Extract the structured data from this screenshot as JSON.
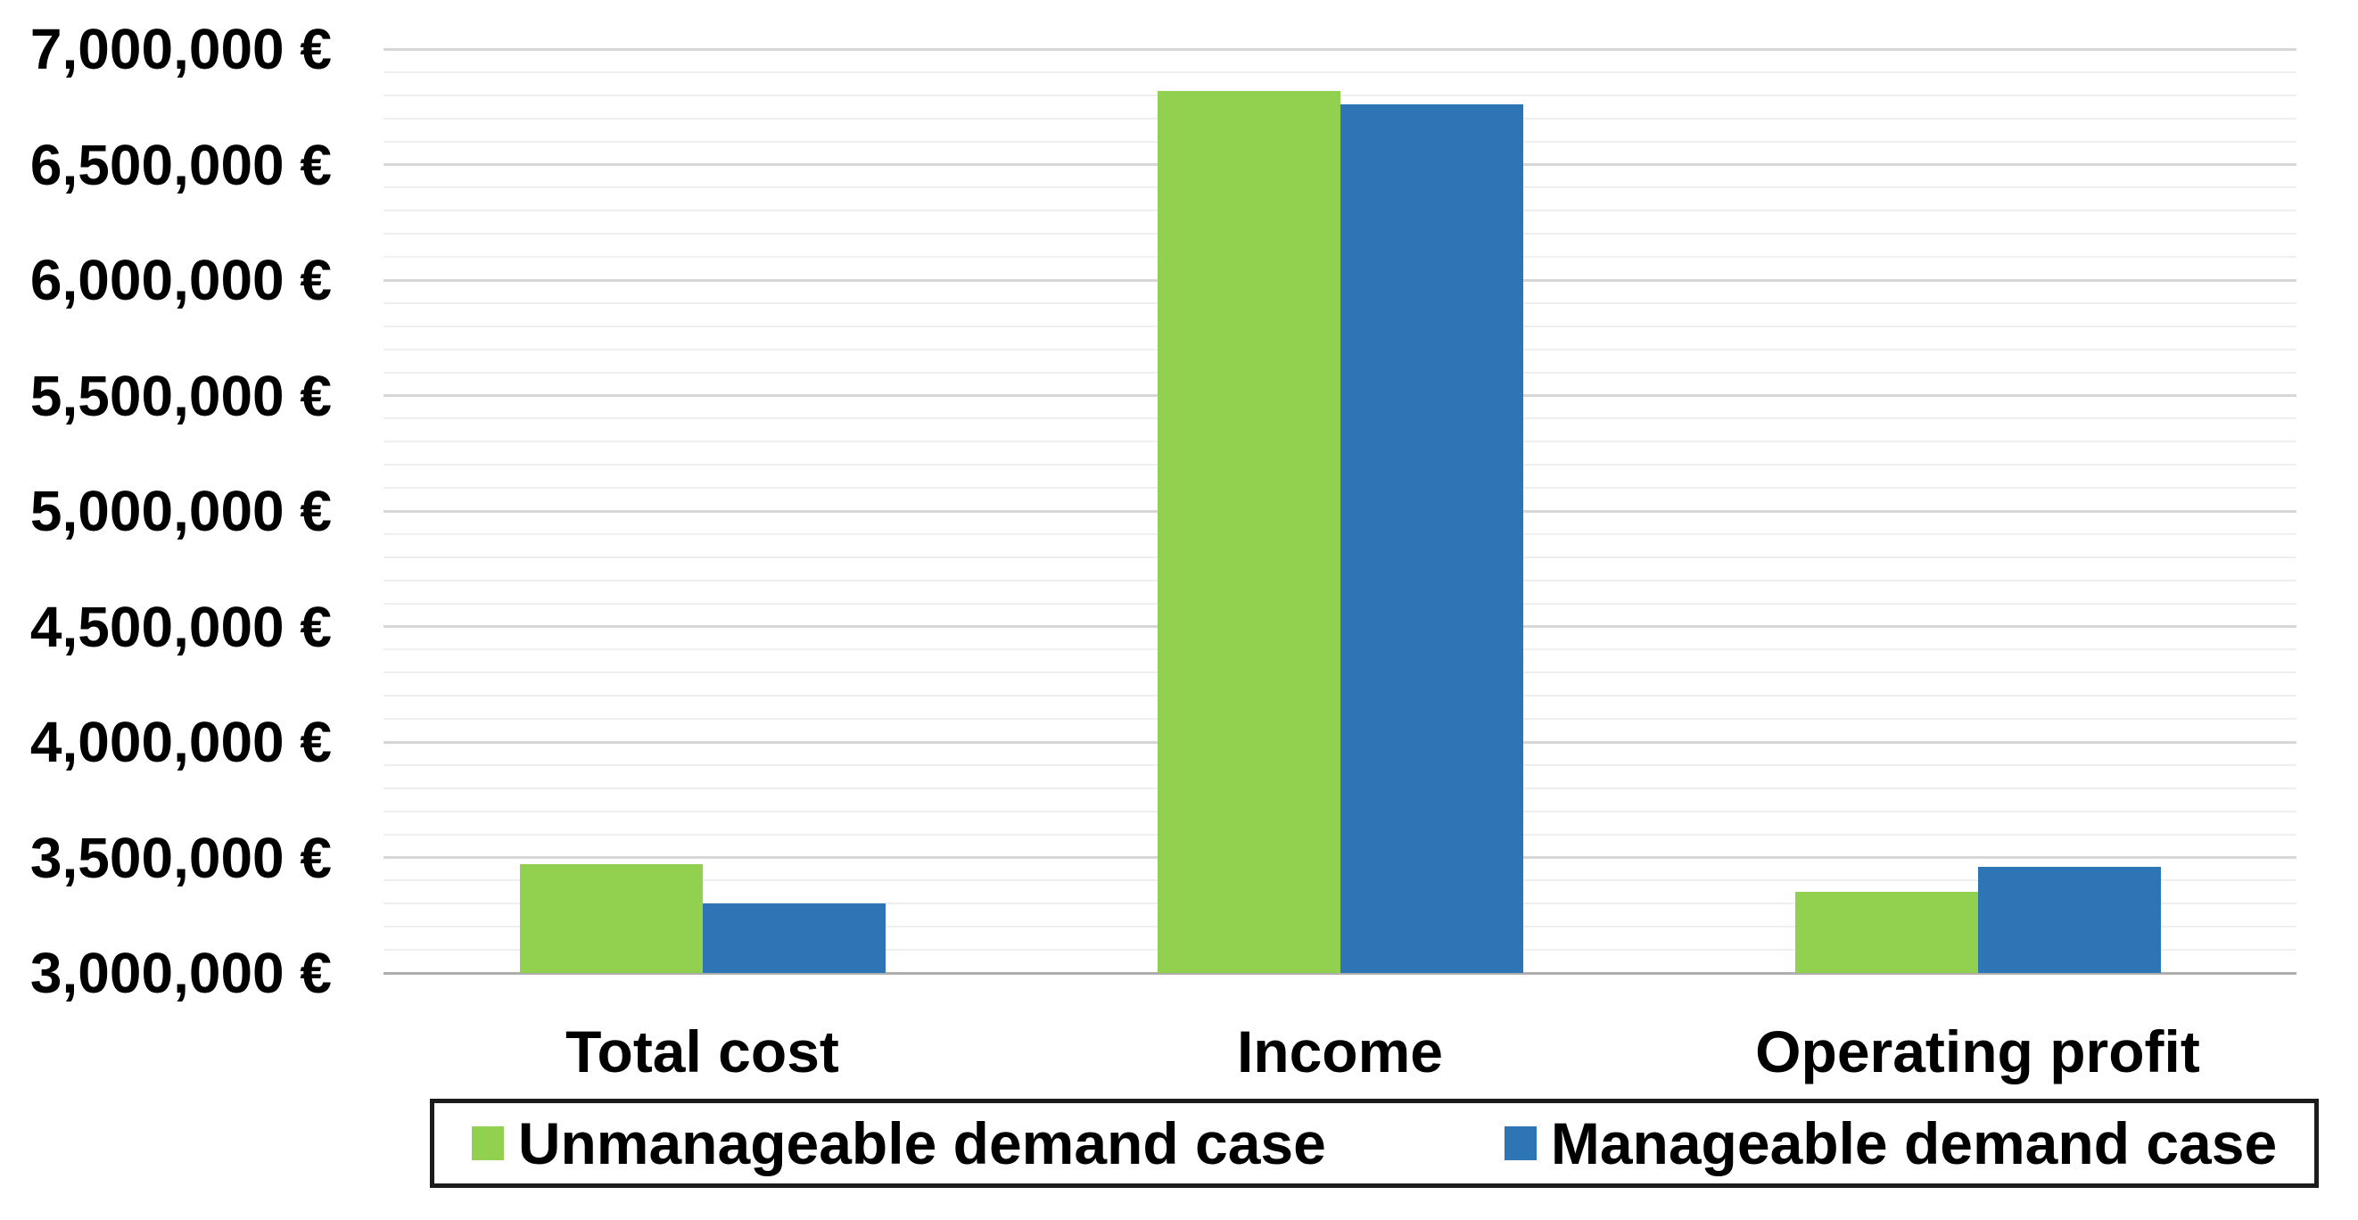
{
  "chart_data": {
    "type": "bar",
    "title": "",
    "categories": [
      "Total cost",
      "Income",
      "Operating profit"
    ],
    "series": [
      {
        "name": "Unmanageable demand case",
        "color": "#92D050",
        "values": [
          3470000,
          6820000,
          3350000
        ]
      },
      {
        "name": "Manageable demand case",
        "color": "#2E75B6",
        "values": [
          3300000,
          6760000,
          3460000
        ]
      }
    ],
    "y_axis": {
      "min": 3000000,
      "max": 7000000,
      "major_step": 500000,
      "minor_step": 100000,
      "unit": "€",
      "tick_labels": [
        "7,000,000 €",
        "6,500,000 €",
        "6,000,000 €",
        "5,500,000 €",
        "5,000,000 €",
        "4,500,000 €",
        "4,000,000 €",
        "3,500,000 €",
        "3,000,000 €"
      ]
    },
    "grid": {
      "major": true,
      "minor": true
    },
    "legend": {
      "position": "bottom",
      "border": true
    },
    "colors": {
      "series_green": "#92D050",
      "series_blue": "#2E75B6",
      "gridline_major": "#d7d7d7",
      "gridline_minor": "#efefef",
      "axis_line": "#aeaeae",
      "legend_border": "#1c1c1c",
      "text": "#000000",
      "background": "#ffffff"
    }
  }
}
